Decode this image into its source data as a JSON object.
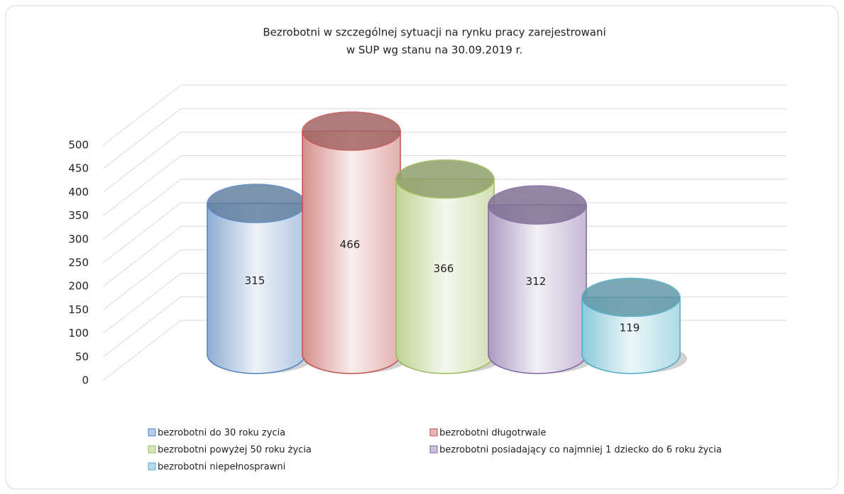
{
  "chart_data": {
    "type": "cylinder",
    "title_lines": [
      "Bezrobotni w szczególnej sytuacji na rynku pracy zarejestrowani",
      "w SUP wg stanu na 30.09.2019 r."
    ],
    "series": [
      {
        "name": "bezrobotni do 30 roku zycia",
        "color": "#4f81bd",
        "values": [
          315
        ]
      },
      {
        "name": "bezrobotni długotrwale",
        "color": "#c0504d",
        "values": [
          466
        ]
      },
      {
        "name": "bezrobotni powyżej 50 roku życia",
        "color": "#9bbb59",
        "values": [
          366
        ]
      },
      {
        "name": "bezrobotni posiadający co najmniej 1 dziecko do 6 roku życia",
        "color": "#8064a2",
        "values": [
          312
        ]
      },
      {
        "name": "bezrobotni niepełnosprawni",
        "color": "#4bacc6",
        "values": [
          119
        ]
      }
    ],
    "ylim": [
      0,
      500
    ],
    "yticks": [
      0,
      50,
      100,
      150,
      200,
      250,
      300,
      350,
      400,
      450,
      500
    ],
    "grid": true
  }
}
